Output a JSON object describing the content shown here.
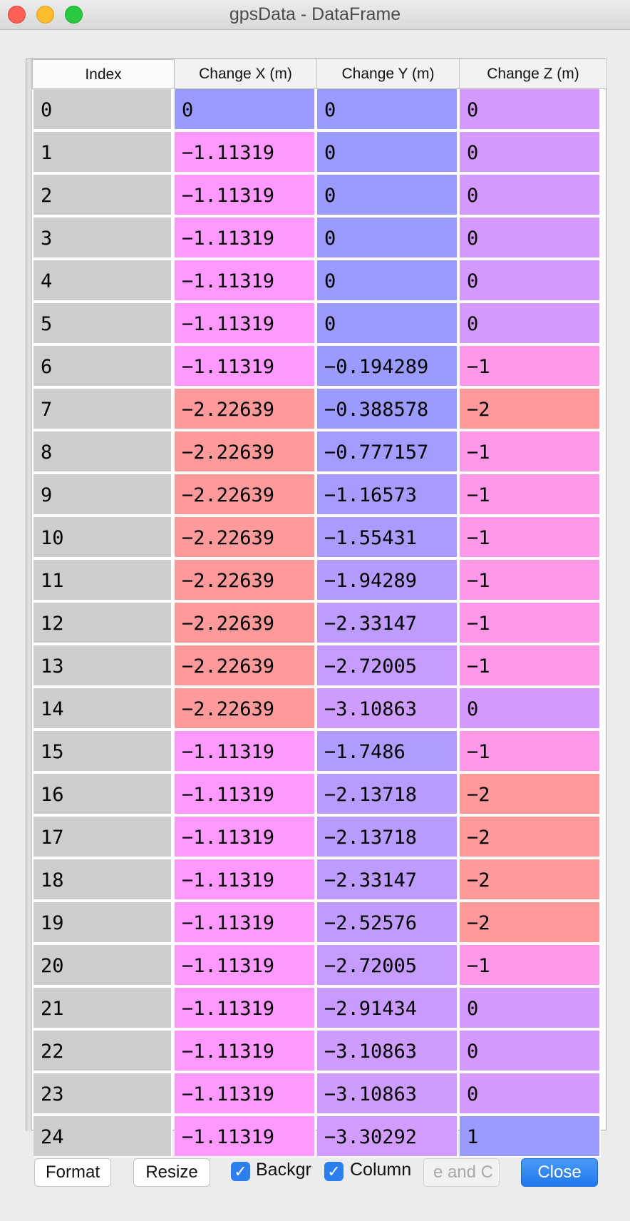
{
  "window": {
    "title": "gpsData - DataFrame"
  },
  "table": {
    "headers": {
      "index": "Index",
      "x": "Change X (m)",
      "y": "Change Y (m)",
      "z": "Change Z (m)"
    },
    "rows": [
      {
        "index": "0",
        "x": "0",
        "y": "0",
        "z": "0",
        "x_color": "#9a9bff",
        "y_color": "#9a9bff",
        "z_color": "#d598ff"
      },
      {
        "index": "1",
        "x": "−1.11319",
        "y": "0",
        "z": "0",
        "x_color": "#ff98ff",
        "y_color": "#9a9bff",
        "z_color": "#d598ff"
      },
      {
        "index": "2",
        "x": "−1.11319",
        "y": "0",
        "z": "0",
        "x_color": "#ff98ff",
        "y_color": "#9a9bff",
        "z_color": "#d598ff"
      },
      {
        "index": "3",
        "x": "−1.11319",
        "y": "0",
        "z": "0",
        "x_color": "#ff98ff",
        "y_color": "#9a9bff",
        "z_color": "#d598ff"
      },
      {
        "index": "4",
        "x": "−1.11319",
        "y": "0",
        "z": "0",
        "x_color": "#ff98ff",
        "y_color": "#9a9bff",
        "z_color": "#d598ff"
      },
      {
        "index": "5",
        "x": "−1.11319",
        "y": "0",
        "z": "0",
        "x_color": "#ff98ff",
        "y_color": "#9a9bff",
        "z_color": "#d598ff"
      },
      {
        "index": "6",
        "x": "−1.11319",
        "y": "−0.194289",
        "z": "−1",
        "x_color": "#ff98ff",
        "y_color": "#9a9bff",
        "z_color": "#ff98e8"
      },
      {
        "index": "7",
        "x": "−2.22639",
        "y": "−0.388578",
        "z": "−2",
        "x_color": "#ff9a9a",
        "y_color": "#9b9bff",
        "z_color": "#ff9a9a"
      },
      {
        "index": "8",
        "x": "−2.22639",
        "y": "−0.777157",
        "z": "−1",
        "x_color": "#ff9a9a",
        "y_color": "#a39bff",
        "z_color": "#ff98e8"
      },
      {
        "index": "9",
        "x": "−2.22639",
        "y": "−1.16573",
        "z": "−1",
        "x_color": "#ff9a9a",
        "y_color": "#a69bff",
        "z_color": "#ff98e8"
      },
      {
        "index": "10",
        "x": "−2.22639",
        "y": "−1.55431",
        "z": "−1",
        "x_color": "#ff9a9a",
        "y_color": "#ab9bff",
        "z_color": "#ff98e8"
      },
      {
        "index": "11",
        "x": "−2.22639",
        "y": "−1.94289",
        "z": "−1",
        "x_color": "#ff9a9a",
        "y_color": "#b59bff",
        "z_color": "#ff98e8"
      },
      {
        "index": "12",
        "x": "−2.22639",
        "y": "−2.33147",
        "z": "−1",
        "x_color": "#ff9a9a",
        "y_color": "#bd9bff",
        "z_color": "#ff98e8"
      },
      {
        "index": "13",
        "x": "−2.22639",
        "y": "−2.72005",
        "z": "−1",
        "x_color": "#ff9a9a",
        "y_color": "#c49bff",
        "z_color": "#ff98e8"
      },
      {
        "index": "14",
        "x": "−2.22639",
        "y": "−3.10863",
        "z": "0",
        "x_color": "#ff9a9a",
        "y_color": "#ce9bff",
        "z_color": "#d598ff"
      },
      {
        "index": "15",
        "x": "−1.11319",
        "y": "−1.7486",
        "z": "−1",
        "x_color": "#ff98ff",
        "y_color": "#b09bff",
        "z_color": "#ff98e8"
      },
      {
        "index": "16",
        "x": "−1.11319",
        "y": "−2.13718",
        "z": "−2",
        "x_color": "#ff98ff",
        "y_color": "#b89bff",
        "z_color": "#ff9a9a"
      },
      {
        "index": "17",
        "x": "−1.11319",
        "y": "−2.13718",
        "z": "−2",
        "x_color": "#ff98ff",
        "y_color": "#b89bff",
        "z_color": "#ff9a9a"
      },
      {
        "index": "18",
        "x": "−1.11319",
        "y": "−2.33147",
        "z": "−2",
        "x_color": "#ff98ff",
        "y_color": "#bd9bff",
        "z_color": "#ff9a9a"
      },
      {
        "index": "19",
        "x": "−1.11319",
        "y": "−2.52576",
        "z": "−2",
        "x_color": "#ff98ff",
        "y_color": "#c09bff",
        "z_color": "#ff9a9a"
      },
      {
        "index": "20",
        "x": "−1.11319",
        "y": "−2.72005",
        "z": "−1",
        "x_color": "#ff98ff",
        "y_color": "#c49bff",
        "z_color": "#ff98e8"
      },
      {
        "index": "21",
        "x": "−1.11319",
        "y": "−2.91434",
        "z": "0",
        "x_color": "#ff98ff",
        "y_color": "#c99bff",
        "z_color": "#d598ff"
      },
      {
        "index": "22",
        "x": "−1.11319",
        "y": "−3.10863",
        "z": "0",
        "x_color": "#ff98ff",
        "y_color": "#ce9bff",
        "z_color": "#d598ff"
      },
      {
        "index": "23",
        "x": "−1.11319",
        "y": "−3.10863",
        "z": "0",
        "x_color": "#ff98ff",
        "y_color": "#ce9bff",
        "z_color": "#d598ff"
      },
      {
        "index": "24",
        "x": "−1.11319",
        "y": "−3.30292",
        "z": "1",
        "x_color": "#ff98ff",
        "y_color": "#d29bff",
        "z_color": "#9a9bff"
      }
    ]
  },
  "footer": {
    "format_label": "Format",
    "resize_label": "Resize",
    "background_label": "Backgr",
    "column_label": "Column",
    "field_value": "e and C",
    "close_label": "Close"
  }
}
